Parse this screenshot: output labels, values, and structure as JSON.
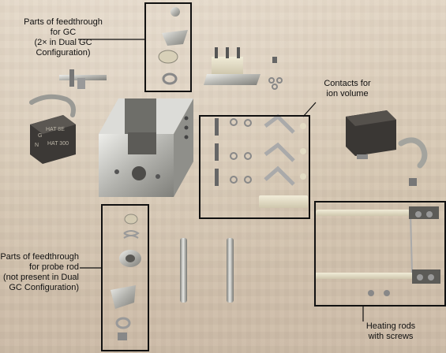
{
  "labels": {
    "feedthrough_gc": "Parts of feedthrough\nfor GC\n(2× in Dual GC\nConfiguration)",
    "contacts_ion_volume": "Contacts for\nion volume",
    "feedthrough_probe_rod": "Parts of feedthrough\nfor probe rod\n(not present in Dual\nGC Configuration)",
    "heating_rods": "Heating rods\nwith screws",
    "plate_marking_1": "HAT 8E",
    "plate_marking_2": "HAT 300",
    "plate_marking_3": "G",
    "plate_marking_4": "N"
  },
  "colors": {
    "callout": "#111111",
    "metal": "#b9b9b5",
    "ceramic": "#e7e1cc",
    "dark_block": "#3b3836"
  }
}
